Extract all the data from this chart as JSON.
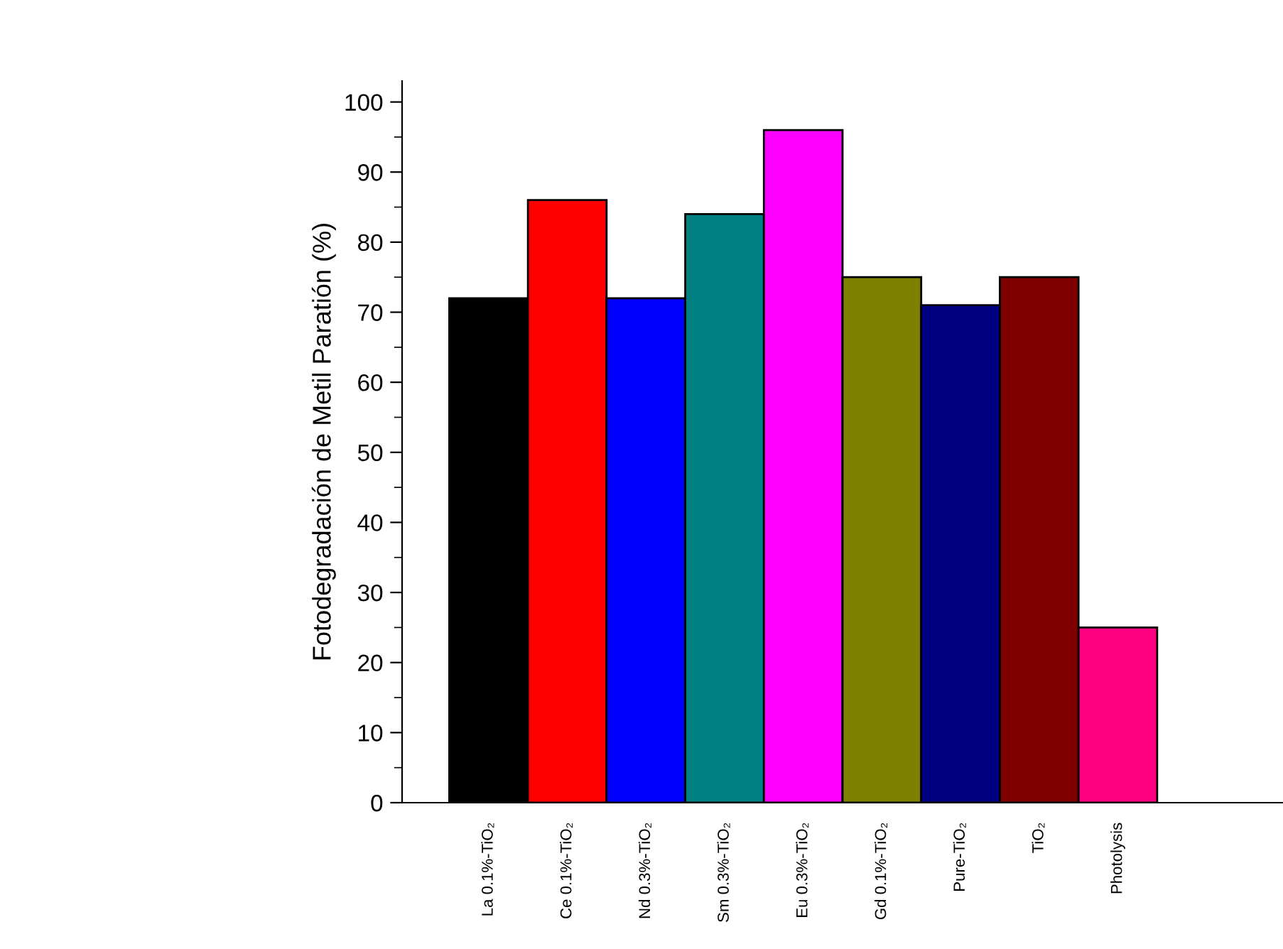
{
  "chart_data": {
    "type": "bar",
    "ylabel": "Fotodegradación de Metil Paratión (%)",
    "categories": [
      "La 0.1%-TiO₂",
      "Ce 0.1%-TiO₂",
      "Nd 0.3%-TiO₂",
      "Sm 0.3%-TiO₂",
      "Eu 0.3%-TiO₂",
      "Gd 0.1%-TiO₂",
      "Pure-TiO₂",
      "TiO₂",
      "Photolysis"
    ],
    "values": [
      72,
      86,
      72,
      84,
      96,
      75,
      71,
      75,
      25
    ],
    "colors": [
      "#000000",
      "#ff0000",
      "#0000ff",
      "#008080",
      "#ff00ff",
      "#808000",
      "#000080",
      "#800000",
      "#ff0080"
    ],
    "ylim": [
      0,
      103
    ],
    "yticks": [
      0,
      10,
      20,
      30,
      40,
      50,
      60,
      70,
      80,
      90,
      100
    ],
    "grid": false,
    "legend": false
  }
}
